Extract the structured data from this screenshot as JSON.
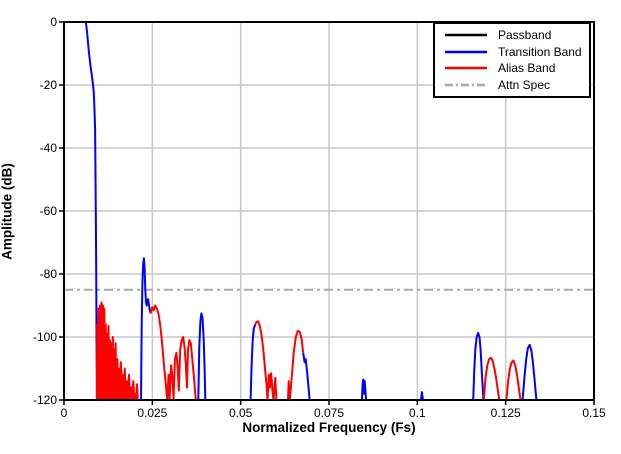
{
  "chart_data": {
    "type": "line",
    "title": "",
    "xlabel": "Normalized Frequency (Fs)",
    "ylabel": "Amplitude (dB)",
    "xlim": [
      0,
      0.15
    ],
    "ylim": [
      -120,
      0
    ],
    "x_ticks": [
      0,
      0.025,
      0.05,
      0.075,
      0.1,
      0.125,
      0.15
    ],
    "x_tick_labels": [
      "0",
      "0.025",
      "0.05",
      "0.075",
      "0.1",
      "0.125",
      "0.15"
    ],
    "y_ticks": [
      0,
      -20,
      -40,
      -60,
      -80,
      -100,
      -120
    ],
    "y_tick_labels": [
      "0",
      "-20",
      "-40",
      "-60",
      "-80",
      "-100",
      "-120"
    ],
    "grid": true,
    "colors": {
      "passband": "#000000",
      "transition": "#0000ff",
      "alias": "#ff0000",
      "attn_spec": "#a9a9a9",
      "gridline": "#c8c8c8",
      "frame": "#000000"
    },
    "attn_spec": {
      "label": "Attn Spec",
      "level_db": -85,
      "style": "dashdot"
    },
    "legend": {
      "position": "top-right",
      "items": [
        {
          "label": "Passband",
          "color": "#000000",
          "style": "solid"
        },
        {
          "label": "Transition Band",
          "color": "#0000ff",
          "style": "solid"
        },
        {
          "label": "Alias Band",
          "color": "#ff0000",
          "style": "solid"
        },
        {
          "label": "Attn Spec",
          "color": "#a9a9a9",
          "style": "dashdot"
        }
      ]
    },
    "segments": [
      {
        "band": "passband",
        "points": [
          [
            0.0,
            0
          ],
          [
            0.0062,
            0
          ]
        ]
      },
      {
        "band": "transition",
        "points": [
          [
            0.0062,
            0
          ],
          [
            0.0066,
            -4
          ],
          [
            0.007,
            -9
          ],
          [
            0.0075,
            -14
          ],
          [
            0.008,
            -18
          ],
          [
            0.0084,
            -22
          ],
          [
            0.0086,
            -27
          ],
          [
            0.0088,
            -34
          ],
          [
            0.0089,
            -45
          ],
          [
            0.009,
            -60
          ],
          [
            0.0091,
            -78
          ],
          [
            0.0092,
            -98
          ],
          [
            0.0093,
            -120
          ]
        ]
      },
      {
        "band": "alias",
        "points": [
          [
            0.0093,
            -120
          ],
          [
            0.0094,
            -96
          ],
          [
            0.0096,
            -120
          ],
          [
            0.0098,
            -91
          ],
          [
            0.01,
            -120
          ],
          [
            0.0102,
            -90
          ],
          [
            0.0104,
            -120
          ],
          [
            0.0106,
            -89
          ],
          [
            0.0108,
            -120
          ],
          [
            0.011,
            -90
          ],
          [
            0.0112,
            -120
          ],
          [
            0.0114,
            -91
          ],
          [
            0.0116,
            -120
          ],
          [
            0.0118,
            -96
          ],
          [
            0.012,
            -120
          ],
          [
            0.0122,
            -99
          ],
          [
            0.0124,
            -120
          ],
          [
            0.0126,
            -96.5
          ],
          [
            0.0128,
            -120
          ],
          [
            0.013,
            -101
          ],
          [
            0.0132,
            -120
          ],
          [
            0.0134,
            -102
          ],
          [
            0.0136,
            -120
          ],
          [
            0.0138,
            -100
          ],
          [
            0.014,
            -120
          ],
          [
            0.0142,
            -104
          ],
          [
            0.0144,
            -120
          ],
          [
            0.0146,
            -102
          ],
          [
            0.0148,
            -120
          ],
          [
            0.0151,
            -107
          ],
          [
            0.0153,
            -120
          ],
          [
            0.0156,
            -110
          ],
          [
            0.0158,
            -120
          ],
          [
            0.0161,
            -108
          ],
          [
            0.0163,
            -120
          ],
          [
            0.0166,
            -112
          ],
          [
            0.0169,
            -120
          ],
          [
            0.0172,
            -110
          ],
          [
            0.0175,
            -120
          ],
          [
            0.0178,
            -114
          ],
          [
            0.0181,
            -120
          ],
          [
            0.0184,
            -112
          ],
          [
            0.0187,
            -120
          ],
          [
            0.019,
            -116
          ],
          [
            0.0193,
            -120
          ],
          [
            0.0196,
            -114
          ],
          [
            0.0199,
            -120
          ],
          [
            0.0202,
            -118
          ],
          [
            0.0204,
            -120
          ],
          [
            0.0207,
            -115
          ],
          [
            0.0209,
            -120
          ]
        ]
      },
      {
        "band": "transition",
        "points": [
          [
            0.0218,
            -120
          ],
          [
            0.022,
            -96
          ],
          [
            0.0222,
            -83
          ],
          [
            0.0224,
            -77
          ],
          [
            0.0226,
            -75
          ],
          [
            0.0228,
            -78
          ],
          [
            0.023,
            -85
          ],
          [
            0.0232,
            -89
          ],
          [
            0.0234,
            -90
          ],
          [
            0.0238,
            -88
          ],
          [
            0.0242,
            -91
          ],
          [
            0.0245,
            -92.5
          ]
        ]
      },
      {
        "band": "alias",
        "points": [
          [
            0.0245,
            -92.5
          ],
          [
            0.025,
            -90.5
          ],
          [
            0.0254,
            -91.5
          ],
          [
            0.0258,
            -90
          ],
          [
            0.0263,
            -91
          ],
          [
            0.0268,
            -93
          ],
          [
            0.0272,
            -96
          ],
          [
            0.0276,
            -100
          ],
          [
            0.028,
            -105
          ],
          [
            0.0284,
            -110
          ],
          [
            0.0288,
            -115
          ],
          [
            0.0292,
            -120
          ],
          [
            0.0296,
            -112
          ],
          [
            0.0299,
            -120
          ],
          [
            0.0303,
            -109
          ],
          [
            0.0307,
            -113
          ],
          [
            0.031,
            -120
          ],
          [
            0.0314,
            -107
          ],
          [
            0.0318,
            -105
          ],
          [
            0.0322,
            -110
          ],
          [
            0.0325,
            -117
          ],
          [
            0.0329,
            -104
          ],
          [
            0.0333,
            -101
          ],
          [
            0.0337,
            -100
          ],
          [
            0.0341,
            -103
          ],
          [
            0.0345,
            -109
          ],
          [
            0.0348,
            -116
          ],
          [
            0.0351,
            -104
          ],
          [
            0.0355,
            -101
          ],
          [
            0.0359,
            -102
          ],
          [
            0.0363,
            -107
          ],
          [
            0.0368,
            -113
          ],
          [
            0.0373,
            -120
          ]
        ]
      },
      {
        "band": "transition",
        "points": [
          [
            0.038,
            -120
          ],
          [
            0.0383,
            -103
          ],
          [
            0.0386,
            -95
          ],
          [
            0.0389,
            -92.5
          ],
          [
            0.0392,
            -94
          ],
          [
            0.0395,
            -100
          ],
          [
            0.0398,
            -110
          ],
          [
            0.04,
            -120
          ]
        ]
      },
      {
        "band": "transition",
        "points": [
          [
            0.0528,
            -120
          ],
          [
            0.0531,
            -109
          ],
          [
            0.0534,
            -101
          ],
          [
            0.0537,
            -97.5
          ],
          [
            0.0541,
            -96
          ]
        ]
      },
      {
        "band": "alias",
        "points": [
          [
            0.0541,
            -96
          ],
          [
            0.0545,
            -95.2
          ],
          [
            0.0549,
            -95
          ],
          [
            0.0553,
            -96
          ],
          [
            0.0557,
            -98
          ],
          [
            0.0561,
            -101
          ],
          [
            0.0565,
            -105
          ],
          [
            0.0569,
            -110
          ],
          [
            0.0573,
            -115
          ],
          [
            0.0576,
            -120
          ],
          [
            0.058,
            -112
          ],
          [
            0.0583,
            -116
          ],
          [
            0.0586,
            -111.5
          ],
          [
            0.059,
            -117
          ],
          [
            0.0593,
            -120
          ],
          [
            0.0598,
            -113
          ],
          [
            0.0601,
            -120
          ],
          [
            0.0634,
            -120
          ],
          [
            0.0636,
            -114
          ],
          [
            0.0639,
            -120
          ],
          [
            0.0645,
            -112
          ],
          [
            0.065,
            -105
          ],
          [
            0.0656,
            -100
          ],
          [
            0.0662,
            -98
          ],
          [
            0.0668,
            -98.5
          ],
          [
            0.0673,
            -101
          ],
          [
            0.0677,
            -105
          ]
        ]
      },
      {
        "band": "transition",
        "points": [
          [
            0.0677,
            -105
          ],
          [
            0.0681,
            -108
          ],
          [
            0.0684,
            -107
          ],
          [
            0.0688,
            -111
          ],
          [
            0.0692,
            -116
          ],
          [
            0.0695,
            -120
          ]
        ]
      },
      {
        "band": "transition",
        "points": [
          [
            0.0843,
            -120
          ],
          [
            0.0845,
            -115
          ],
          [
            0.0847,
            -113.5
          ],
          [
            0.0849,
            -118
          ],
          [
            0.0851,
            -114
          ],
          [
            0.0853,
            -117
          ],
          [
            0.0855,
            -120
          ]
        ]
      },
      {
        "band": "transition",
        "points": [
          [
            0.101,
            -120
          ],
          [
            0.1013,
            -117.5
          ],
          [
            0.1016,
            -120
          ]
        ]
      },
      {
        "band": "transition",
        "points": [
          [
            0.1158,
            -120
          ],
          [
            0.1161,
            -111
          ],
          [
            0.1164,
            -104
          ],
          [
            0.1168,
            -100
          ],
          [
            0.1172,
            -98.7
          ],
          [
            0.1176,
            -100
          ],
          [
            0.1179,
            -104
          ],
          [
            0.1182,
            -110
          ],
          [
            0.1185,
            -116
          ],
          [
            0.1187,
            -120
          ]
        ]
      },
      {
        "band": "alias",
        "points": [
          [
            0.1188,
            -120
          ],
          [
            0.1193,
            -113
          ],
          [
            0.1198,
            -109
          ],
          [
            0.1203,
            -107
          ],
          [
            0.1208,
            -106.6
          ],
          [
            0.1213,
            -107.5
          ],
          [
            0.1218,
            -110
          ],
          [
            0.1223,
            -113
          ],
          [
            0.1228,
            -117
          ],
          [
            0.1232,
            -120
          ]
        ]
      },
      {
        "band": "alias",
        "points": [
          [
            0.1252,
            -120
          ],
          [
            0.1257,
            -114
          ],
          [
            0.1262,
            -110
          ],
          [
            0.1267,
            -108
          ],
          [
            0.1272,
            -107.5
          ],
          [
            0.1277,
            -109
          ],
          [
            0.1282,
            -112
          ],
          [
            0.1287,
            -116
          ],
          [
            0.1292,
            -120
          ]
        ]
      },
      {
        "band": "transition",
        "points": [
          [
            0.1298,
            -120
          ],
          [
            0.1303,
            -113
          ],
          [
            0.1308,
            -107
          ],
          [
            0.1313,
            -103.5
          ],
          [
            0.1318,
            -102.5
          ],
          [
            0.1323,
            -104.5
          ],
          [
            0.1328,
            -109
          ],
          [
            0.1333,
            -115
          ],
          [
            0.1337,
            -120
          ]
        ]
      }
    ]
  }
}
